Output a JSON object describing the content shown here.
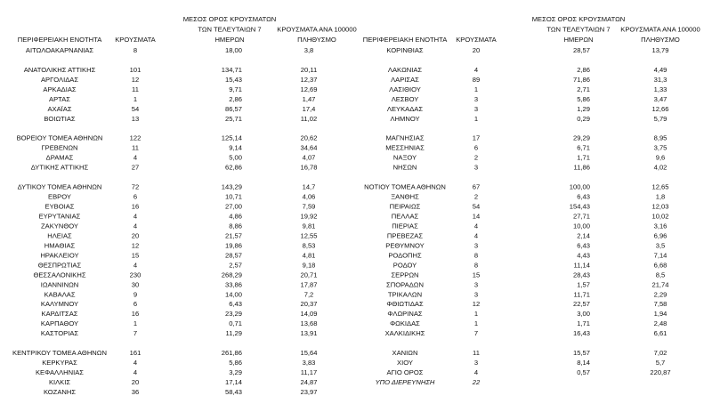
{
  "tables": [
    {
      "headers": [
        [
          "ΠΕΡΙΦΕΡΕΙΑΚΗ ΕΝΟΤΗΤΑ"
        ],
        [
          "ΚΡΟΥΣΜΑΤΑ"
        ],
        [
          "ΜΕΣΟΣ ΟΡΟΣ ΚΡΟΥΣΜΑΤΩΝ",
          "ΤΩΝ ΤΕΛΕΥΤΑΙΩΝ 7",
          "ΗΜΕΡΩΝ"
        ],
        [
          "ΚΡΟΥΣΜΑΤΑ ΑΝΑ 100000",
          "ΠΛΗΘΥΣΜΟ"
        ]
      ],
      "groups": [
        [
          [
            "ΑΙΤΩΛΟΑΚΑΡΝΑΝΙΑΣ",
            "8",
            "18,00",
            "3,8"
          ]
        ],
        [
          [
            "ΑΝΑΤΟΛΙΚΗΣ ΑΤΤΙΚΗΣ",
            "101",
            "134,71",
            "20,11"
          ],
          [
            "ΑΡΓΟΛΙΔΑΣ",
            "12",
            "15,43",
            "12,37"
          ],
          [
            "ΑΡΚΑΔΙΑΣ",
            "11",
            "9,71",
            "12,69"
          ],
          [
            "ΑΡΤΑΣ",
            "1",
            "2,86",
            "1,47"
          ],
          [
            "ΑΧΑΪΑΣ",
            "54",
            "86,57",
            "17,4"
          ],
          [
            "ΒΟΙΩΤΙΑΣ",
            "13",
            "25,71",
            "11,02"
          ]
        ],
        [
          [
            "ΒΟΡΕΙΟΥ ΤΟΜΕΑ ΑΘΗΝΩΝ",
            "122",
            "125,14",
            "20,62"
          ],
          [
            "ΓΡΕΒΕΝΩΝ",
            "11",
            "9,14",
            "34,64"
          ],
          [
            "ΔΡΑΜΑΣ",
            "4",
            "5,00",
            "4,07"
          ],
          [
            "ΔΥΤΙΚΗΣ ΑΤΤΙΚΗΣ",
            "27",
            "62,86",
            "16,78"
          ]
        ],
        [
          [
            "ΔΥΤΙΚΟΥ ΤΟΜΕΑ ΑΘΗΝΩΝ",
            "72",
            "143,29",
            "14,7"
          ],
          [
            "ΕΒΡΟΥ",
            "6",
            "10,71",
            "4,06"
          ],
          [
            "ΕΥΒΟΙΑΣ",
            "16",
            "27,00",
            "7,59"
          ],
          [
            "ΕΥΡΥΤΑΝΙΑΣ",
            "4",
            "4,86",
            "19,92"
          ],
          [
            "ΖΑΚΥΝΘΟΥ",
            "4",
            "8,86",
            "9,81"
          ],
          [
            "ΗΛΕΙΑΣ",
            "20",
            "21,57",
            "12,55"
          ],
          [
            "ΗΜΑΘΙΑΣ",
            "12",
            "19,86",
            "8,53"
          ],
          [
            "ΗΡΑΚΛΕΙΟΥ",
            "15",
            "28,57",
            "4,81"
          ],
          [
            "ΘΕΣΠΡΩΤΙΑΣ",
            "4",
            "2,57",
            "9,18"
          ],
          [
            "ΘΕΣΣΑΛΟΝΙΚΗΣ",
            "230",
            "268,29",
            "20,71"
          ],
          [
            "ΙΩΑΝΝΙΝΩΝ",
            "30",
            "33,86",
            "17,87"
          ],
          [
            "ΚΑΒΑΛΑΣ",
            "9",
            "14,00",
            "7,2"
          ],
          [
            "ΚΑΛΥΜΝΟΥ",
            "6",
            "6,43",
            "20,37"
          ],
          [
            "ΚΑΡΔΙΤΣΑΣ",
            "16",
            "23,29",
            "14,09"
          ],
          [
            "ΚΑΡΠΑΘΟΥ",
            "1",
            "0,71",
            "13,68"
          ],
          [
            "ΚΑΣΤΟΡΙΑΣ",
            "7",
            "11,29",
            "13,91"
          ]
        ],
        [
          [
            "ΚΕΝΤΡΙΚΟΥ ΤΟΜΕΑ ΑΘΗΝΩΝ",
            "161",
            "261,86",
            "15,64"
          ],
          [
            "ΚΕΡΚΥΡΑΣ",
            "4",
            "5,86",
            "3,83"
          ],
          [
            "ΚΕΦΑΛΛΗΝΙΑΣ",
            "4",
            "3,29",
            "11,17"
          ],
          [
            "ΚΙΛΚΙΣ",
            "20",
            "17,14",
            "24,87"
          ],
          [
            "ΚΟΖΑΝΗΣ",
            "36",
            "58,43",
            "23,97"
          ]
        ]
      ]
    },
    {
      "headers": [
        [
          "ΠΕΡΙΦΕΡΕΙΑΚΗ ΕΝΟΤΗΤΑ"
        ],
        [
          "ΚΡΟΥΣΜΑΤΑ"
        ],
        [
          "ΜΕΣΟΣ ΟΡΟΣ ΚΡΟΥΣΜΑΤΩΝ",
          "ΤΩΝ ΤΕΛΕΥΤΑΙΩΝ 7",
          "ΗΜΕΡΩΝ"
        ],
        [
          "ΚΡΟΥΣΜΑΤΑ ΑΝΑ 100000",
          "ΠΛΗΘΥΣΜΟ"
        ]
      ],
      "groups": [
        [
          [
            "ΚΟΡΙΝΘΙΑΣ",
            "20",
            "28,57",
            "13,79"
          ]
        ],
        [
          [
            "ΛΑΚΩΝΙΑΣ",
            "4",
            "2,86",
            "4,49"
          ],
          [
            "ΛΑΡΙΣΑΣ",
            "89",
            "71,86",
            "31,3"
          ],
          [
            "ΛΑΣΙΘΙΟΥ",
            "1",
            "2,71",
            "1,33"
          ],
          [
            "ΛΕΣΒΟΥ",
            "3",
            "5,86",
            "3,47"
          ],
          [
            "ΛΕΥΚΑΔΑΣ",
            "3",
            "1,29",
            "12,66"
          ],
          [
            "ΛΗΜΝΟΥ",
            "1",
            "0,29",
            "5,79"
          ]
        ],
        [
          [
            "ΜΑΓΝΗΣΙΑΣ",
            "17",
            "29,29",
            "8,95"
          ],
          [
            "ΜΕΣΣΗΝΙΑΣ",
            "6",
            "6,71",
            "3,75"
          ],
          [
            "ΝΑΞΟΥ",
            "2",
            "1,71",
            "9,6"
          ],
          [
            "ΝΗΣΩΝ",
            "3",
            "11,86",
            "4,02"
          ]
        ],
        [
          [
            "ΝΟΤΙΟΥ ΤΟΜΕΑ ΑΘΗΝΩΝ",
            "67",
            "100,00",
            "12,65"
          ],
          [
            "ΞΑΝΘΗΣ",
            "2",
            "6,43",
            "1,8"
          ],
          [
            "ΠΕΙΡΑΙΩΣ",
            "54",
            "154,43",
            "12,03"
          ],
          [
            "ΠΕΛΛΑΣ",
            "14",
            "27,71",
            "10,02"
          ],
          [
            "ΠΙΕΡΙΑΣ",
            "4",
            "10,00",
            "3,16"
          ],
          [
            "ΠΡΕΒΕΖΑΣ",
            "4",
            "2,14",
            "6,96"
          ],
          [
            "ΡΕΘΥΜΝΟΥ",
            "3",
            "6,43",
            "3,5"
          ],
          [
            "ΡΟΔΟΠΗΣ",
            "8",
            "4,43",
            "7,14"
          ],
          [
            "ΡΟΔΟΥ",
            "8",
            "11,14",
            "6,68"
          ],
          [
            "ΣΕΡΡΩΝ",
            "15",
            "28,43",
            "8,5"
          ],
          [
            "ΣΠΟΡΑΔΩΝ",
            "3",
            "1,57",
            "21,74"
          ],
          [
            "ΤΡΙΚΑΛΩΝ",
            "3",
            "11,71",
            "2,29"
          ],
          [
            "ΦΘΙΩΤΙΔΑΣ",
            "12",
            "22,57",
            "7,58"
          ],
          [
            "ΦΛΩΡΙΝΑΣ",
            "1",
            "3,00",
            "1,94"
          ],
          [
            "ΦΩΚΙΔΑΣ",
            "1",
            "1,71",
            "2,48"
          ],
          [
            "ΧΑΛΚΙΔΙΚΗΣ",
            "7",
            "16,43",
            "6,61"
          ]
        ],
        [
          [
            "ΧΑΝΙΩΝ",
            "11",
            "15,57",
            "7,02"
          ],
          [
            "ΧΙΟΥ",
            "3",
            "8,14",
            "5,7"
          ],
          [
            "ΑΓΙΟ ΟΡΟΣ",
            "4",
            "0,57",
            "220,87"
          ],
          [
            "ΥΠΟ ΔΙΕΡΕΥΝΗΣΗ",
            "22"
          ]
        ]
      ]
    }
  ]
}
